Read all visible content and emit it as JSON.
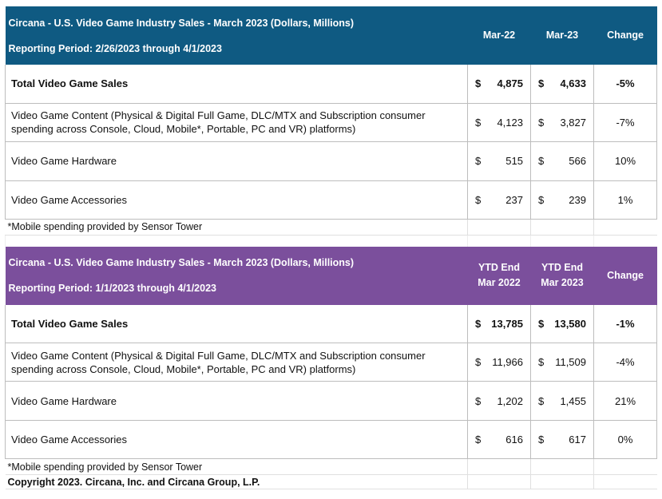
{
  "table1": {
    "title": "Circana - U.S. Video Game Industry Sales - March 2023 (Dollars, Millions)",
    "period": "Reporting Period: 2/26/2023 through 4/1/2023",
    "col1": "Mar-22",
    "col2": "Mar-23",
    "col3": "Change",
    "rows": [
      {
        "label": "Total Video Game Sales",
        "v1": "4,875",
        "v2": "4,633",
        "change": "-5%"
      },
      {
        "label": "Video Game Content (Physical & Digital Full Game, DLC/MTX and Subscription consumer spending across Console, Cloud, Mobile*, Portable, PC and VR) platforms)",
        "v1": "4,123",
        "v2": "3,827",
        "change": "-7%"
      },
      {
        "label": "Video Game Hardware",
        "v1": "515",
        "v2": "566",
        "change": "10%"
      },
      {
        "label": "Video Game Accessories",
        "v1": "237",
        "v2": "239",
        "change": "1%"
      }
    ],
    "note": "*Mobile spending provided by Sensor Tower"
  },
  "table2": {
    "title": "Circana - U.S. Video Game Industry Sales - March 2023 (Dollars, Millions)",
    "period": "Reporting Period: 1/1/2023 through 4/1/2023",
    "col1_line1": "YTD End",
    "col1_line2": "Mar 2022",
    "col2_line1": "YTD End",
    "col2_line2": "Mar 2023",
    "col3": "Change",
    "rows": [
      {
        "label": "Total Video Game Sales",
        "v1": "13,785",
        "v2": "13,580",
        "change": "-1%"
      },
      {
        "label": "Video Game Content (Physical & Digital Full Game, DLC/MTX and Subscription consumer spending across Console, Cloud, Mobile*, Portable, PC and VR) platforms)",
        "v1": "11,966",
        "v2": "11,509",
        "change": "-4%"
      },
      {
        "label": "Video Game Hardware",
        "v1": "1,202",
        "v2": "1,455",
        "change": "21%"
      },
      {
        "label": "Video Game Accessories",
        "v1": "616",
        "v2": "617",
        "change": "0%"
      }
    ],
    "note": "*Mobile spending provided by Sensor Tower"
  },
  "currency_symbol": "$",
  "copyright": "Copyright 2023. Circana, Inc. and Circana Group, L.P.",
  "colors": {
    "header1": "#0f5a82",
    "header2": "#7b4f9c"
  }
}
